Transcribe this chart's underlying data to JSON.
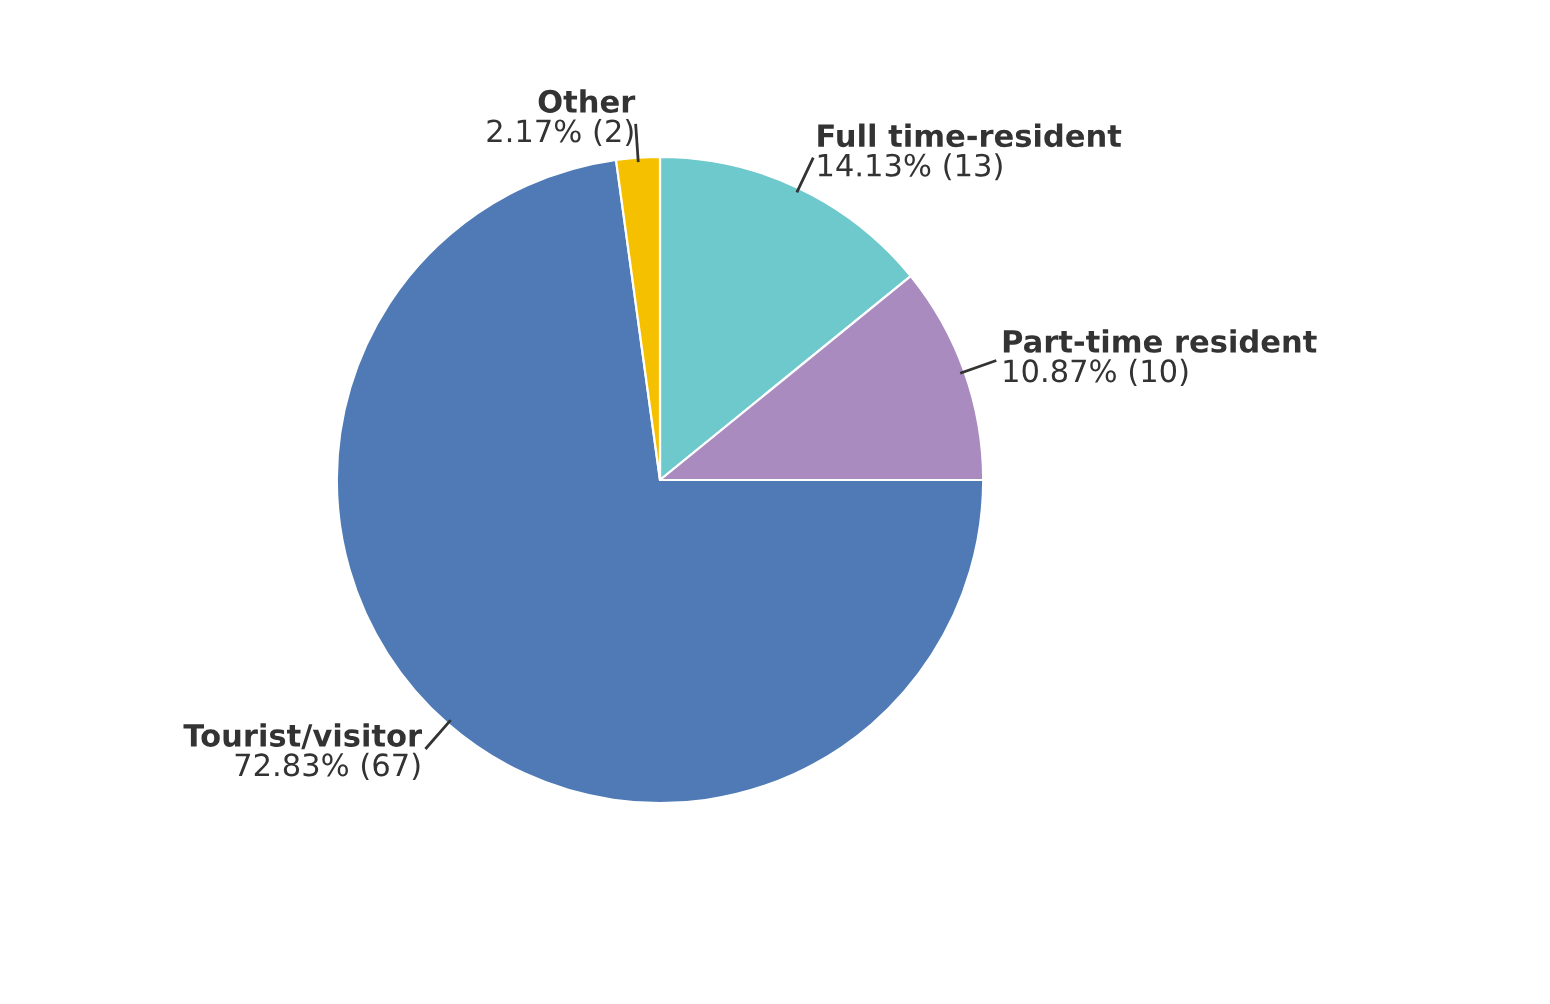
{
  "chart_data": {
    "type": "pie",
    "categories": [
      "Full time-resident",
      "Part-time resident",
      "Tourist/visitor",
      "Other"
    ],
    "values": [
      13,
      10,
      67,
      2
    ],
    "value_labels": [
      "14.13% (13)",
      "10.87% (10)",
      "72.83% (67)",
      "2.17% (2)"
    ],
    "colors": [
      "#6dc9cc",
      "#a98bbf",
      "#4f7ab5",
      "#f5c000"
    ],
    "legend": false
  }
}
